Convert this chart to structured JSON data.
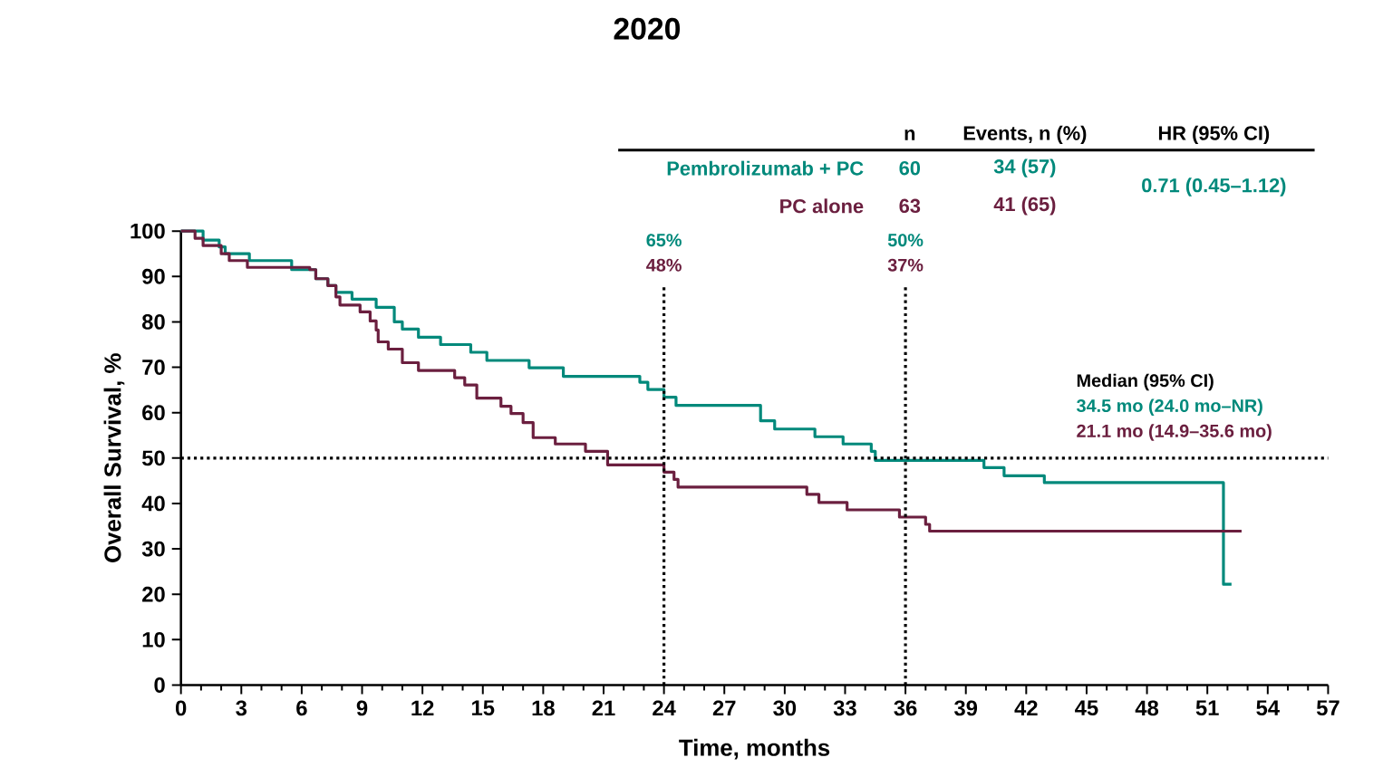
{
  "chart_data": {
    "type": "step",
    "title": "2020",
    "xlabel": "Time, months",
    "ylabel": "Overall Survival, %",
    "xlim": [
      0,
      57
    ],
    "ylim": [
      0,
      100
    ],
    "xticks": [
      0,
      3,
      6,
      9,
      12,
      15,
      18,
      21,
      24,
      27,
      30,
      33,
      36,
      39,
      42,
      45,
      48,
      51,
      54,
      57
    ],
    "yticks": [
      0,
      10,
      20,
      30,
      40,
      50,
      60,
      70,
      80,
      90,
      100
    ],
    "series": [
      {
        "name": "Pembrolizumab + PC",
        "color": "#00897b",
        "x": [
          0,
          1.1,
          1.9,
          2.2,
          3.4,
          5.5,
          6.7,
          7.3,
          7.7,
          8.5,
          9.7,
          10.6,
          11.0,
          11.8,
          12.9,
          14.4,
          15.2,
          17.3,
          19.0,
          22.8,
          23.2,
          24.0,
          24.6,
          28.8,
          29.5,
          31.5,
          32.9,
          34.3,
          34.5,
          39.9,
          40.9,
          42.9,
          51.8,
          52.2
        ],
        "values": [
          100,
          98,
          96.5,
          95,
          93.5,
          91.5,
          89.5,
          88,
          86.5,
          85,
          83.2,
          80,
          78.4,
          76.6,
          75,
          73.3,
          71.5,
          69.9,
          68,
          66.7,
          65.1,
          63.4,
          61.6,
          58.2,
          56.4,
          54.7,
          53.1,
          51.5,
          49.5,
          47.9,
          46.1,
          44.6,
          22.2,
          22.2
        ]
      },
      {
        "name": "PC alone",
        "color": "#6b1f3f",
        "x": [
          0,
          0.7,
          1.1,
          2.0,
          2.4,
          3.3,
          6.4,
          6.7,
          7.3,
          7.7,
          7.9,
          8.9,
          9.4,
          9.7,
          9.8,
          10.3,
          11.0,
          11.8,
          13.6,
          14.1,
          14.7,
          15.9,
          16.4,
          17.0,
          17.5,
          18.6,
          20.1,
          21.2,
          24.0,
          24.5,
          24.7,
          31.1,
          31.7,
          33.1,
          35.7,
          37.0,
          37.2,
          52.7
        ],
        "values": [
          100,
          98.4,
          96.8,
          95,
          93.5,
          92,
          91.5,
          89.5,
          88,
          85.5,
          83.7,
          82.2,
          80.2,
          78.2,
          75.6,
          74,
          71,
          69.3,
          67.7,
          66.1,
          63.2,
          61.4,
          59.8,
          57.8,
          54.5,
          53.1,
          51.5,
          48.5,
          46.9,
          45.3,
          43.6,
          42,
          40.2,
          38.6,
          37,
          35.4,
          33.9,
          33.9
        ]
      }
    ],
    "ref_lines": [
      {
        "axis": "x",
        "value": 24,
        "line_style": "dotted"
      },
      {
        "axis": "x",
        "value": 36,
        "line_style": "dotted"
      },
      {
        "axis": "y",
        "value": 50,
        "line_style": "dotted"
      }
    ],
    "annotations": [
      "n",
      "Events, n (%)",
      "HR (95% CI)",
      "60",
      "34 (57)",
      "63",
      "41 (65)",
      "0.71 (0.45–1.12)",
      "65%",
      "48%",
      "50%",
      "37%",
      "Median (95% CI)",
      "34.5 mo (24.0 mo–NR)",
      "21.1 mo (14.9–35.6 mo)"
    ],
    "marker": "none",
    "line_style": "solid"
  }
}
